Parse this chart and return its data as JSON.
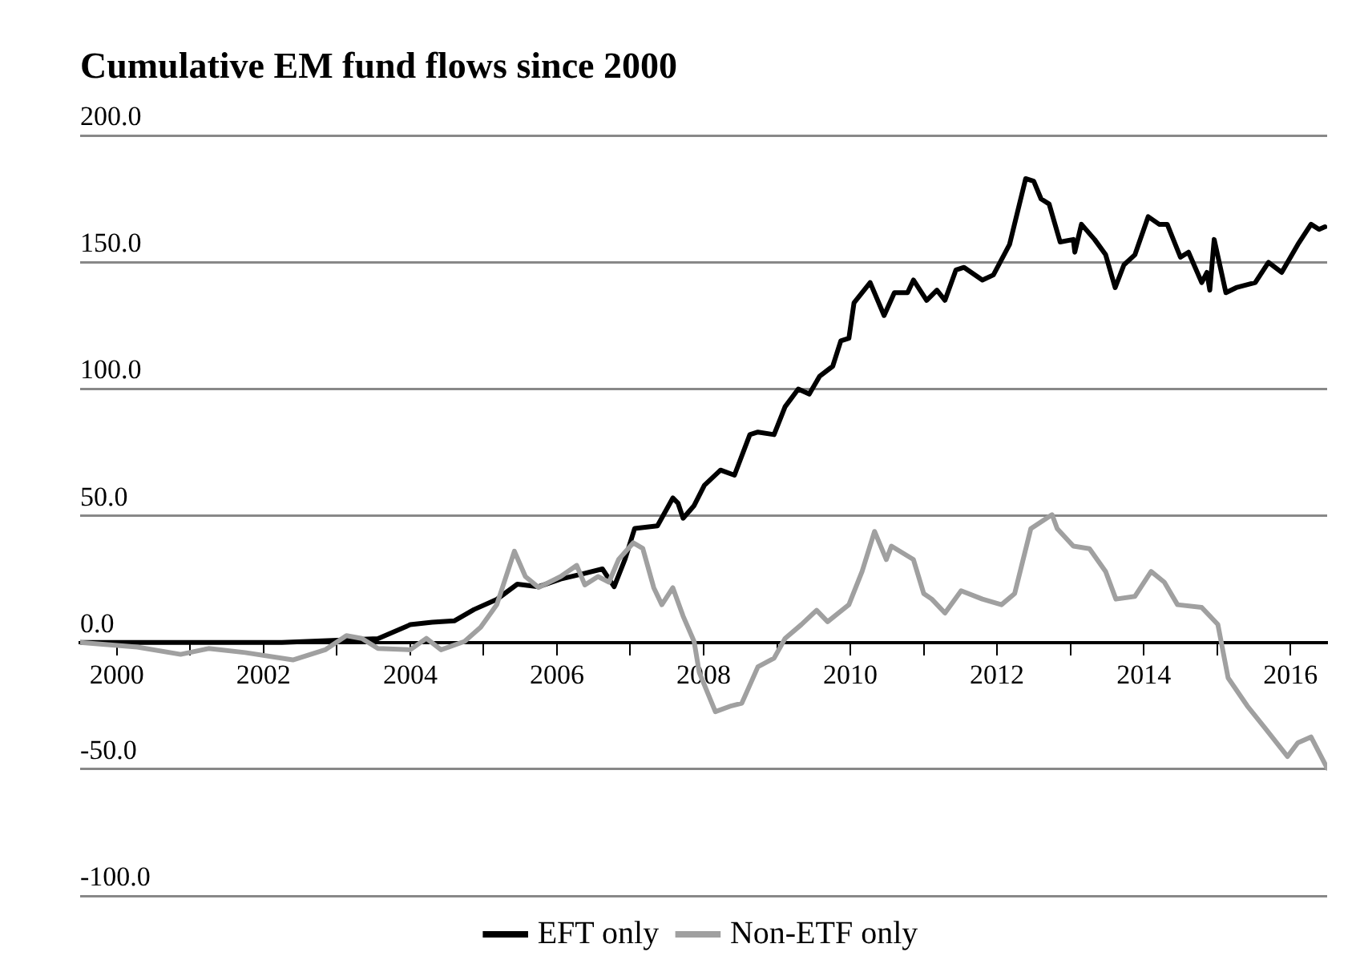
{
  "chart_data": {
    "type": "line",
    "title": "Cumulative EM fund flows since 2000",
    "xlim": [
      1999.5,
      2016.5
    ],
    "xticks": [
      2000,
      {
        "value": 2001,
        "label": null
      },
      2002,
      {
        "value": 2003,
        "label": null
      },
      2004,
      {
        "value": 2005,
        "label": null
      },
      2006,
      {
        "value": 2007,
        "label": null
      },
      2008,
      {
        "value": 2009,
        "label": null
      },
      2010,
      {
        "value": 2011,
        "label": null
      },
      2012,
      {
        "value": 2013,
        "label": null
      },
      2014,
      {
        "value": 2015,
        "label": null
      },
      2016
    ],
    "ylim": [
      -100,
      200
    ],
    "yticks": [
      {
        "value": -100,
        "label": "-100.0"
      },
      {
        "value": -50,
        "label": "-50.0"
      },
      {
        "value": 0,
        "label": "0.0"
      },
      {
        "value": 50,
        "label": "50.0"
      },
      {
        "value": 100,
        "label": "100.0"
      },
      {
        "value": 150,
        "label": "150.0"
      },
      {
        "value": 200,
        "label": "200.0"
      }
    ],
    "grid": "y",
    "legend": "bottom",
    "marker": "none",
    "line_style": "solid",
    "series": [
      {
        "name": "EFT only",
        "color": "#000000",
        "x": [
          1999.5,
          2002.25,
          2003.56,
          2004.0,
          2004.3,
          2004.6,
          2004.87,
          2005.18,
          2005.46,
          2005.75,
          2006.05,
          2006.34,
          2006.62,
          2006.78,
          2006.93,
          2007.06,
          2007.37,
          2007.58,
          2007.65,
          2007.72,
          2007.87,
          2008.01,
          2008.23,
          2008.42,
          2008.63,
          2008.74,
          2008.96,
          2009.11,
          2009.29,
          2009.44,
          2009.58,
          2009.76,
          2009.87,
          2009.98,
          2010.05,
          2010.27,
          2010.46,
          2010.6,
          2010.78,
          2010.86,
          2011.04,
          2011.18,
          2011.29,
          2011.44,
          2011.55,
          2011.8,
          2011.95,
          2012.17,
          2012.39,
          2012.5,
          2012.6,
          2012.71,
          2012.86,
          2013.04,
          2013.06,
          2013.15,
          2013.33,
          2013.48,
          2013.61,
          2013.73,
          2013.88,
          2014.06,
          2014.21,
          2014.32,
          2014.5,
          2014.61,
          2014.79,
          2014.86,
          2014.9,
          2014.96,
          2015.12,
          2015.26,
          2015.52,
          2015.7,
          2015.88,
          2016.1,
          2016.28,
          2016.39,
          2016.47
        ],
        "values": [
          0,
          0,
          1.5,
          7,
          8,
          8.5,
          13,
          17,
          23,
          22,
          25,
          27,
          29,
          22,
          33,
          45,
          46,
          57,
          55,
          49,
          54,
          62,
          68,
          66,
          82,
          83,
          82,
          93,
          100,
          98,
          105,
          109,
          119,
          120,
          134,
          142,
          129,
          138,
          138,
          143,
          135,
          139,
          135,
          147,
          148,
          143,
          145,
          157,
          183,
          182,
          175,
          173,
          158,
          159,
          154,
          165,
          159,
          153,
          140,
          149,
          153,
          168,
          165,
          165,
          152,
          154,
          142,
          146,
          139,
          159,
          138,
          140,
          142,
          150,
          146,
          157,
          165,
          163,
          164
        ]
      },
      {
        "name": "Non-ETF only",
        "color": "#a0a0a0",
        "x": [
          1999.5,
          2000.28,
          2000.87,
          2001.25,
          2001.75,
          2002.4,
          2002.84,
          2003.13,
          2003.34,
          2003.56,
          2004.0,
          2004.22,
          2004.42,
          2004.74,
          2004.96,
          2005.18,
          2005.42,
          2005.57,
          2005.75,
          2006.05,
          2006.27,
          2006.38,
          2006.56,
          2006.71,
          2006.84,
          2007.04,
          2007.17,
          2007.32,
          2007.43,
          2007.58,
          2007.72,
          2007.87,
          2007.94,
          2008.16,
          2008.38,
          2008.52,
          2008.74,
          2008.96,
          2009.11,
          2009.33,
          2009.54,
          2009.69,
          2009.98,
          2010.16,
          2010.33,
          2010.49,
          2010.56,
          2010.86,
          2011.0,
          2011.11,
          2011.29,
          2011.51,
          2011.8,
          2012.06,
          2012.24,
          2012.46,
          2012.75,
          2012.82,
          2013.04,
          2013.26,
          2013.48,
          2013.62,
          2013.88,
          2014.1,
          2014.28,
          2014.46,
          2014.79,
          2015.01,
          2015.15,
          2015.41,
          2015.66,
          2015.96,
          2016.1,
          2016.28,
          2016.5
        ],
        "values": [
          0,
          -1.8,
          -4.7,
          -2.4,
          -4,
          -6.9,
          -2.9,
          2.7,
          1.6,
          -2.4,
          -2.9,
          1.6,
          -2.9,
          0.4,
          6,
          14.9,
          36,
          26,
          21.7,
          26,
          30.4,
          22.7,
          26,
          23.8,
          32.7,
          39.3,
          37.1,
          21.6,
          14.9,
          21.6,
          10.4,
          0.4,
          -11.8,
          -27.3,
          -25,
          -24,
          -9.6,
          -6.2,
          1.6,
          7,
          12.7,
          8.2,
          14.9,
          28,
          43.8,
          32.7,
          38,
          32.7,
          19.3,
          17.1,
          11.6,
          20.4,
          17.1,
          14.9,
          19.3,
          44.9,
          50.4,
          44.9,
          38,
          37,
          28,
          17.1,
          18.2,
          28,
          23.8,
          14.9,
          13.8,
          7.1,
          -14,
          -25,
          -34,
          -45,
          -39.6,
          -37.3,
          -49.6
        ]
      }
    ]
  }
}
